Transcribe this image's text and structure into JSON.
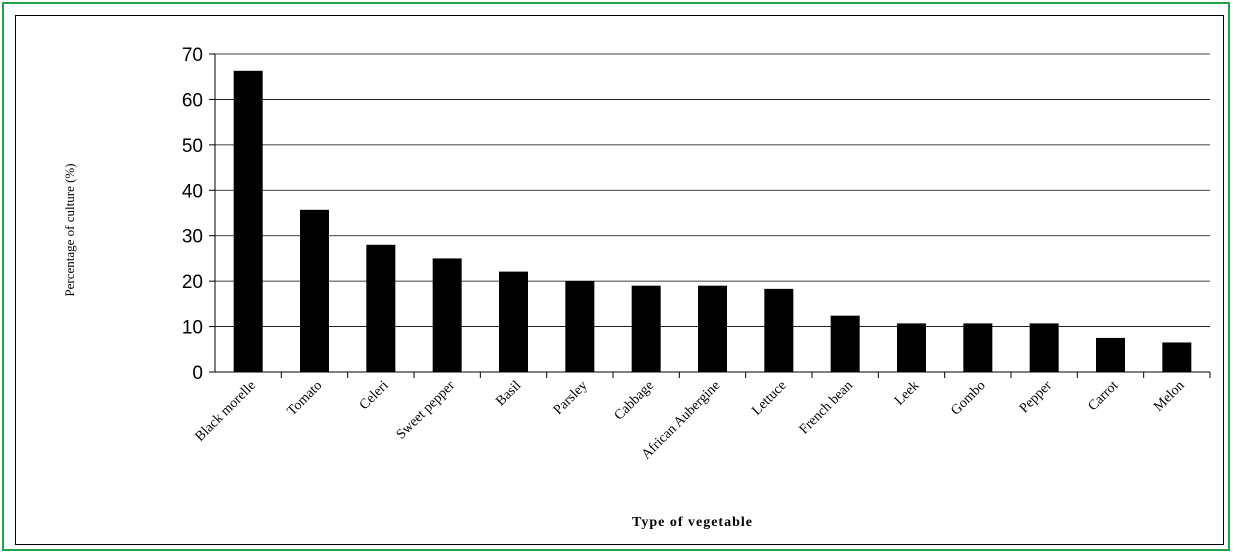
{
  "chart_data": {
    "type": "bar",
    "categories": [
      "Black morelle",
      "Tomato",
      "Celeri",
      "Sweet pepper",
      "Basil",
      "Parsley",
      "Cabbage",
      "African Aubergine",
      "Lettuce",
      "French bean",
      "Leek",
      "Gombo",
      "Pepper",
      "Carrot",
      "Melon"
    ],
    "values": [
      66.3,
      35.7,
      28,
      25,
      22.1,
      20,
      19,
      19,
      18.3,
      12.4,
      10.7,
      10.7,
      10.7,
      7.5,
      6.5
    ],
    "xlabel": "Type of vegetable",
    "ylabel": "Percentage of culture (%)",
    "ylim": [
      0,
      70
    ],
    "yticks": [
      0,
      10,
      20,
      30,
      40,
      50,
      60,
      70
    ],
    "grid": true,
    "bar_color": "#000000"
  }
}
